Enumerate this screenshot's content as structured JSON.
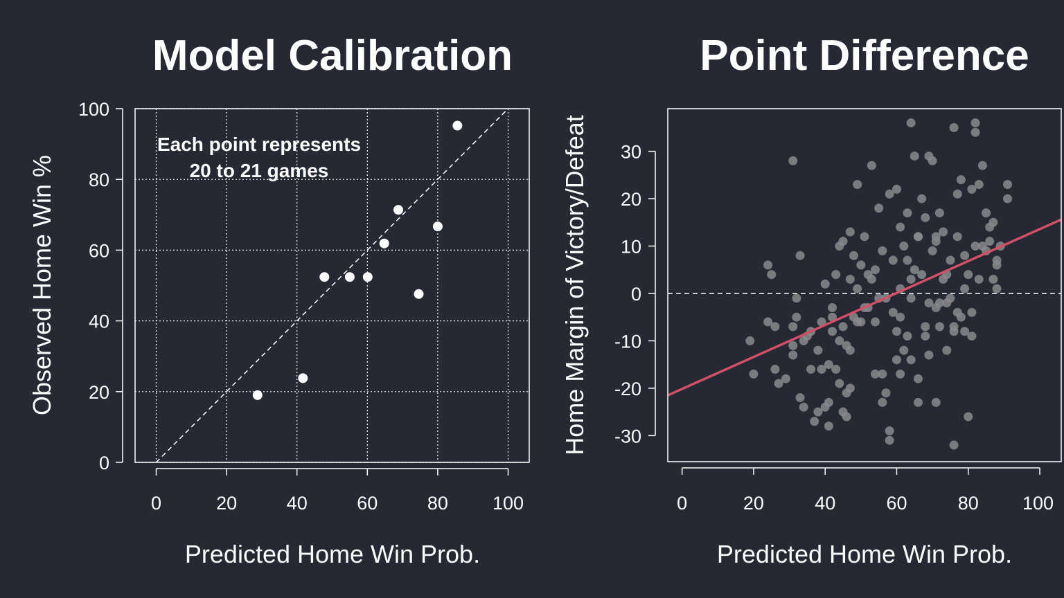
{
  "chart_data": [
    {
      "type": "scatter",
      "title": "Model Calibration",
      "xlabel": "Predicted Home Win Prob.",
      "ylabel": "Observed Home Win %",
      "annotation": [
        "Each point represents",
        "20 to 21 games"
      ],
      "xlim": [
        -6,
        106
      ],
      "ylim": [
        0,
        100
      ],
      "xticks": [
        0,
        20,
        40,
        60,
        80,
        100
      ],
      "yticks": [
        0,
        20,
        40,
        60,
        80,
        100
      ],
      "grid": true,
      "reference_line": "y = x (dashed)",
      "point_color": "#ffffff",
      "x": [
        28.8,
        41.7,
        47.8,
        55.0,
        60.1,
        64.8,
        68.8,
        74.6,
        80.0,
        85.6
      ],
      "y": [
        19.0,
        23.8,
        52.4,
        52.4,
        52.4,
        61.9,
        71.4,
        47.6,
        66.7,
        95.2
      ]
    },
    {
      "type": "scatter",
      "title": "Point Difference",
      "xlabel": "Predicted Home Win Prob.",
      "ylabel": "Home Margin of Victory/Defeat",
      "xlim": [
        -4,
        106
      ],
      "ylim": [
        -35.5,
        39
      ],
      "xticks": [
        0,
        20,
        40,
        60,
        80,
        100
      ],
      "yticks": [
        -30,
        -20,
        -10,
        0,
        10,
        20,
        30
      ],
      "zero_line": "dashed",
      "point_color": "#8a8a8d",
      "trend_line": {
        "color": "#d05068",
        "x": [
          -4,
          106
        ],
        "y": [
          -21.5,
          15.6
        ]
      },
      "x": [
        19,
        20,
        24,
        24,
        25,
        26,
        26,
        27,
        29,
        31,
        31,
        31,
        32,
        32,
        33,
        33,
        34,
        34,
        35,
        36,
        37,
        38,
        38,
        39,
        39,
        40,
        40,
        41,
        41,
        42,
        42,
        43,
        43,
        44,
        44,
        44,
        45,
        45,
        45,
        46,
        46,
        46,
        47,
        47,
        47,
        48,
        48,
        49,
        49,
        50,
        50,
        51,
        51,
        52,
        53,
        53,
        54,
        54,
        55,
        55,
        56,
        56,
        57,
        57,
        58,
        58,
        59,
        59,
        60,
        60,
        60,
        61,
        61,
        62,
        62,
        63,
        63,
        63,
        64,
        64,
        64,
        65,
        65,
        66,
        66,
        66,
        67,
        67,
        68,
        68,
        69,
        69,
        69,
        70,
        70,
        71,
        71,
        71,
        72,
        72,
        73,
        73,
        74,
        74,
        75,
        75,
        76,
        76,
        76,
        77,
        77,
        77,
        78,
        78,
        79,
        79,
        79,
        80,
        80,
        81,
        81,
        81,
        82,
        82,
        82,
        83,
        83,
        84,
        84,
        85,
        85,
        86,
        86,
        87,
        87,
        88,
        88,
        89,
        91,
        91,
        56,
        66,
        72,
        61,
        36,
        47,
        64,
        58,
        76,
        54,
        42,
        88,
        31,
        41,
        68,
        71,
        52,
        49,
        74,
        61
      ],
      "y": [
        -10,
        -17,
        6,
        -6,
        4,
        -7,
        -16,
        -19,
        -18,
        -11,
        -7,
        28,
        -5,
        -1,
        -22,
        8,
        -10,
        -24,
        -9,
        -8,
        -27,
        -12,
        -25,
        -6,
        -16,
        -24,
        2,
        -23,
        -15,
        -8,
        -3,
        4,
        -16,
        10,
        -10,
        -19,
        -7,
        -25,
        11,
        -26,
        -11,
        -21,
        3,
        -20,
        13,
        -5,
        8,
        1,
        23,
        -6,
        6,
        12,
        -3,
        4,
        27,
        3,
        -17,
        -6,
        18,
        -1,
        9,
        -17,
        -1,
        -21,
        21,
        -31,
        -4,
        7,
        -14,
        -8,
        22,
        1,
        14,
        -12,
        10,
        -9,
        7,
        17,
        -1,
        36,
        -14,
        29,
        5,
        -18,
        -23,
        12,
        4,
        20,
        -9,
        16,
        -2,
        -13,
        29,
        28,
        9,
        -23,
        -3,
        12,
        -7,
        17,
        3,
        13,
        -2,
        -12,
        -1,
        7,
        -32,
        35,
        -7,
        21,
        -4,
        12,
        -5,
        24,
        8,
        1,
        -8,
        -26,
        4,
        22,
        -9,
        -4,
        36,
        34,
        10,
        23,
        3,
        27,
        10,
        17,
        9,
        11,
        14,
        3,
        15,
        1,
        7,
        10,
        23,
        20,
        -23,
        12,
        -2,
        -5,
        -16,
        -12,
        3,
        -29,
        -8,
        5,
        -5,
        6,
        -13,
        -28,
        -7,
        11,
        -3,
        -6,
        4,
        -17
      ]
    }
  ]
}
